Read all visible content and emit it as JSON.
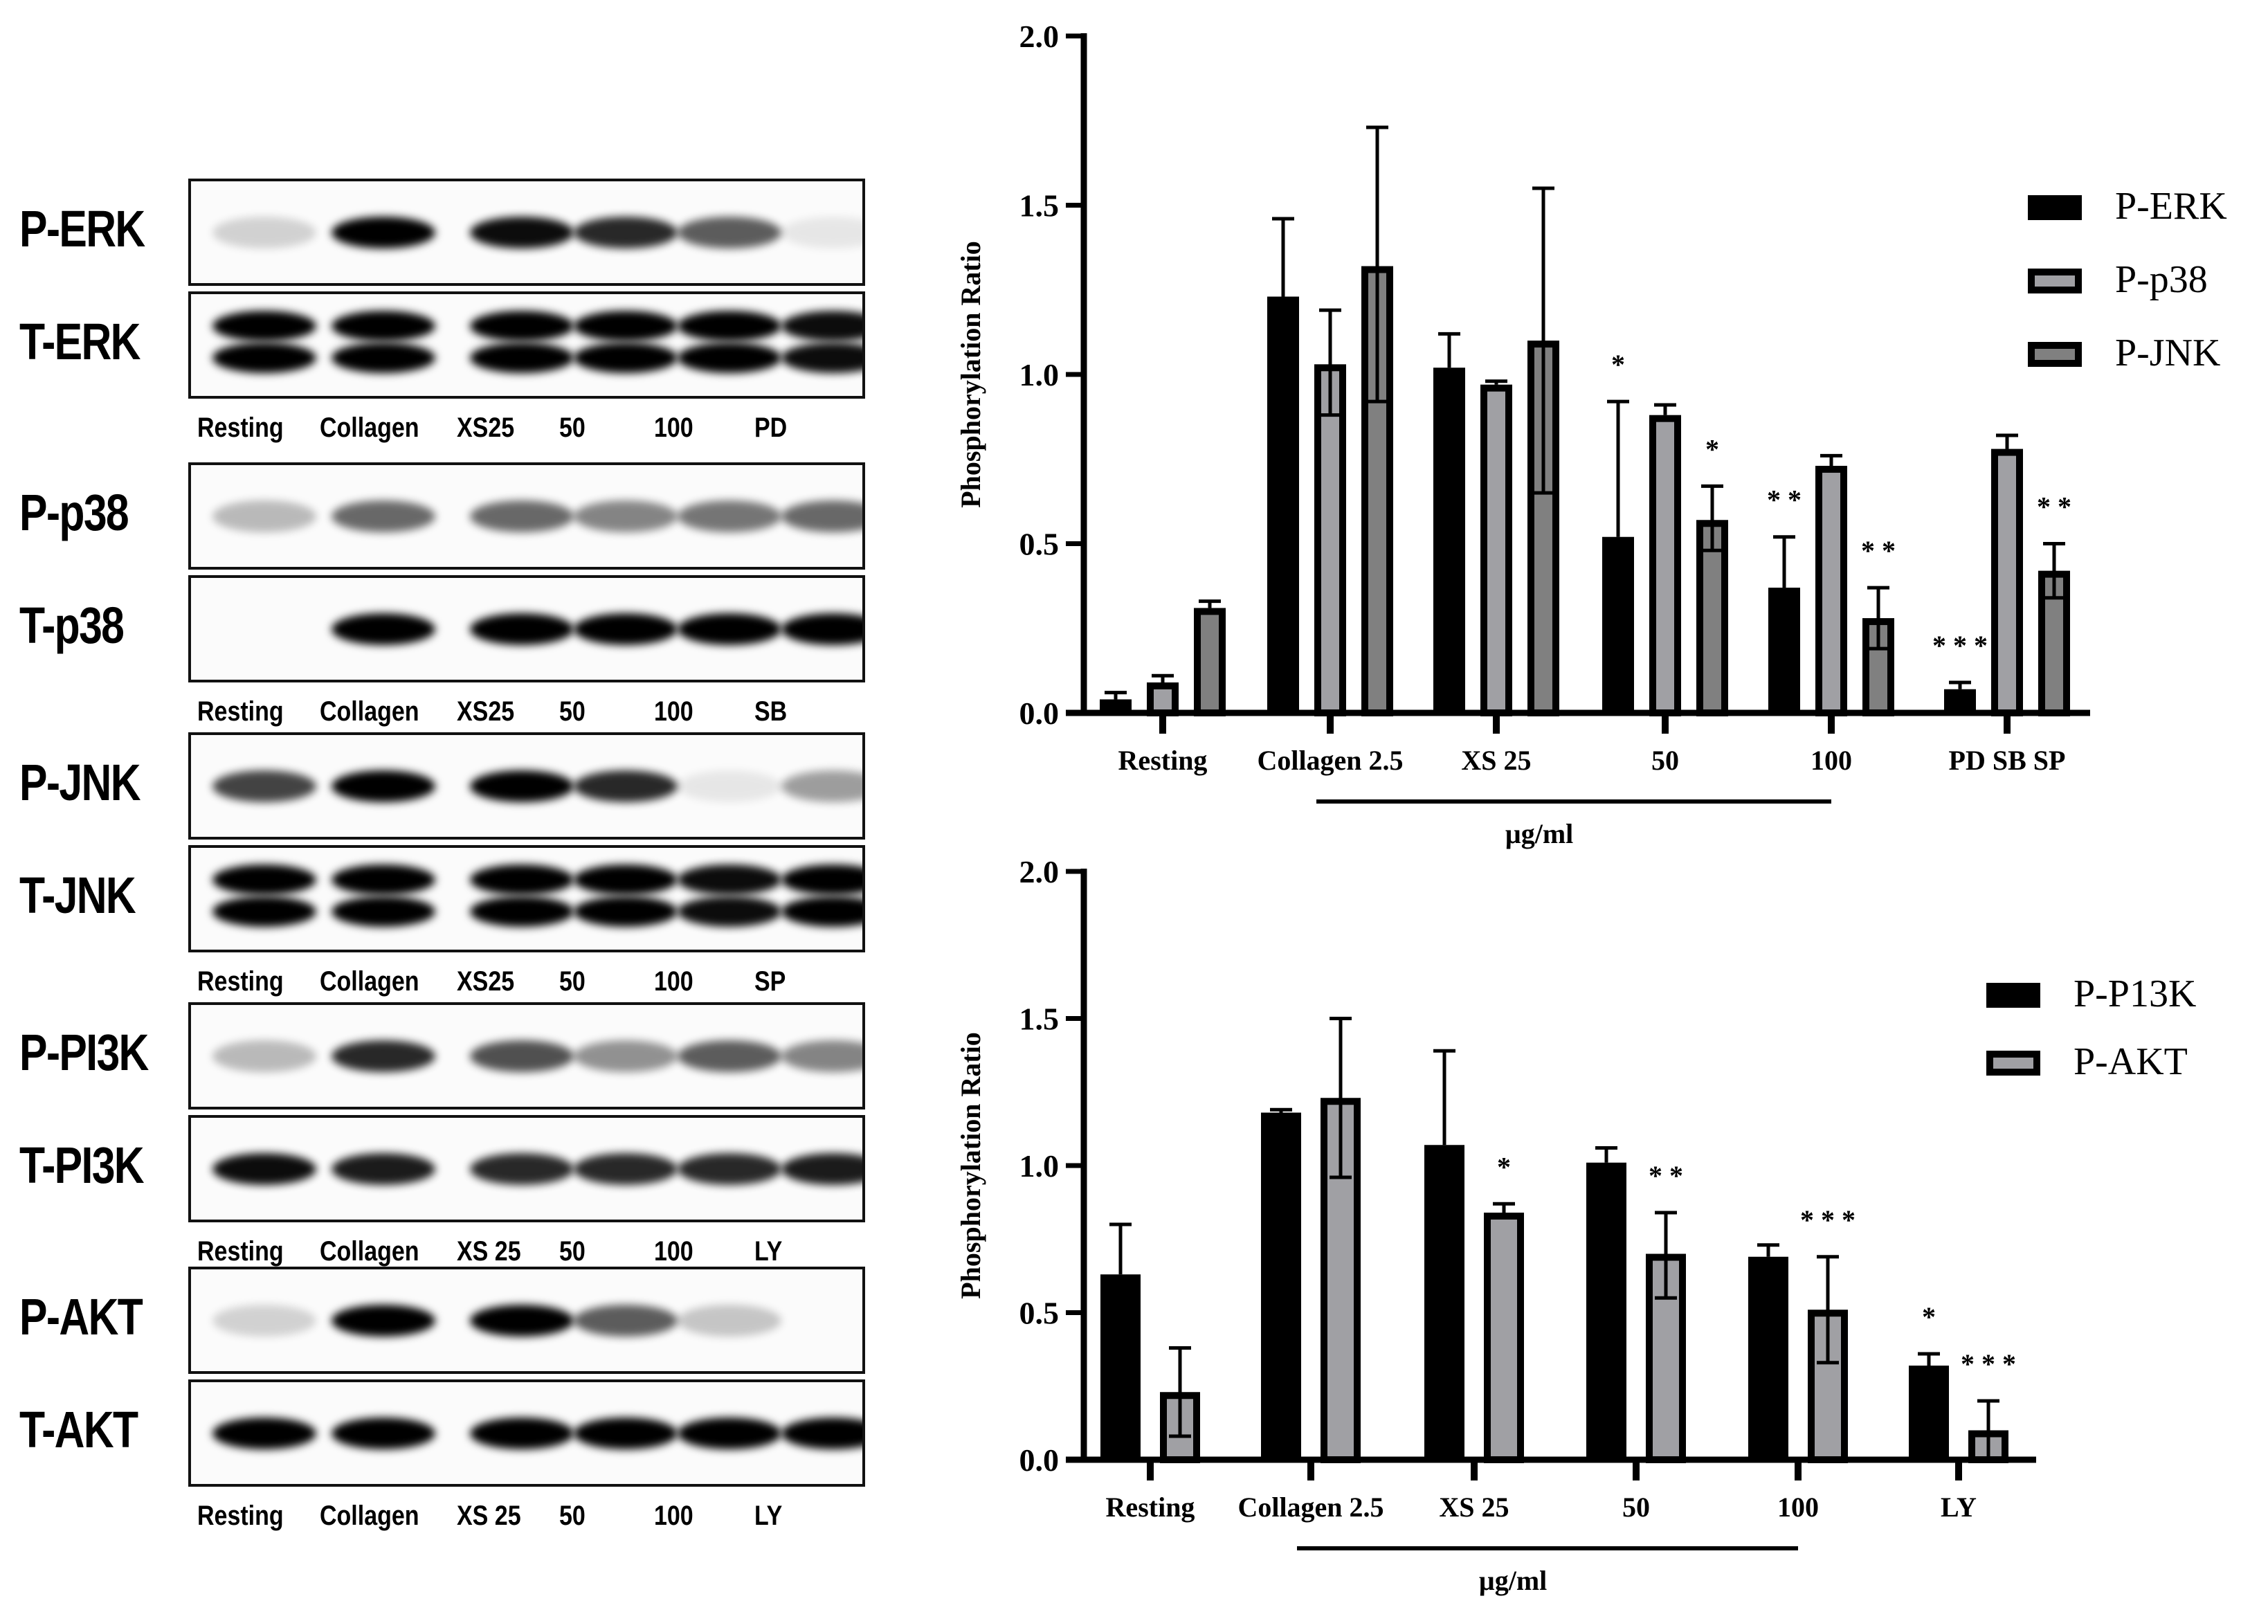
{
  "blots": {
    "groups": [
      {
        "phospho_label": "P-ERK",
        "total_label": "T-ERK",
        "lanes": [
          "Resting",
          "Collagen",
          "XS25",
          "50",
          "100",
          "PD"
        ],
        "phospho_intensity": [
          0.15,
          1.0,
          0.9,
          0.8,
          0.6,
          0.08
        ],
        "total_intensity": [
          1.0,
          1.0,
          0.95,
          0.95,
          0.95,
          0.9
        ],
        "total_double_band": true
      },
      {
        "phospho_label": "P-p38",
        "total_label": "T-p38",
        "lanes": [
          "Resting",
          "Collagen",
          "XS25",
          "50",
          "100",
          "SB"
        ],
        "phospho_intensity": [
          0.25,
          0.55,
          0.55,
          0.45,
          0.5,
          0.55
        ],
        "total_intensity": [
          0,
          1.0,
          1.0,
          1.0,
          1.0,
          0.95
        ],
        "total_double_band": false
      },
      {
        "phospho_label": "P-JNK",
        "total_label": "T-JNK",
        "lanes": [
          "Resting",
          "Collagen",
          "XS25",
          "50",
          "100",
          "SP"
        ],
        "phospho_intensity": [
          0.7,
          1.0,
          1.0,
          0.8,
          0.08,
          0.35
        ],
        "total_intensity": [
          1.0,
          1.0,
          1.0,
          1.0,
          0.9,
          0.95
        ],
        "total_double_band": true
      },
      {
        "phospho_label": "P-PI3K",
        "total_label": "T-PI3K",
        "lanes": [
          "Resting",
          "Collagen",
          "XS 25",
          "50",
          "100",
          "LY"
        ],
        "phospho_intensity": [
          0.25,
          0.8,
          0.65,
          0.4,
          0.6,
          0.45
        ],
        "total_intensity": [
          0.9,
          0.85,
          0.8,
          0.8,
          0.8,
          0.85
        ],
        "total_double_band": false
      },
      {
        "phospho_label": "P-AKT",
        "total_label": "T-AKT",
        "lanes": [
          "Resting",
          "Collagen",
          "XS 25",
          "50",
          "100",
          "LY"
        ],
        "phospho_intensity": [
          0.15,
          1.0,
          1.0,
          0.6,
          0.2,
          0.0
        ],
        "total_intensity": [
          1.0,
          0.95,
          1.0,
          1.0,
          1.0,
          1.0
        ],
        "total_double_band": false
      }
    ]
  },
  "chart_data": [
    {
      "type": "bar",
      "title": "",
      "xlabel": "µg/ml",
      "ylabel": "Phosphorylation Ratio",
      "ylim": [
        0,
        2.0
      ],
      "yticks": [
        "0.0",
        "0.5",
        "1.0",
        "1.5",
        "2.0"
      ],
      "grid": false,
      "legend_position": "right",
      "categories": [
        "Resting",
        "Collagen 2.5",
        "XS 25",
        "50",
        "100",
        "PD SB SP"
      ],
      "dose_bar_span": [
        "Collagen 2.5",
        "100"
      ],
      "series": [
        {
          "name": "P-ERK",
          "color": "#000000",
          "values": [
            0.04,
            1.23,
            1.02,
            0.52,
            0.37,
            0.07
          ],
          "err_low": [
            0.04,
            1.23,
            1.02,
            0.52,
            0.37,
            0.07
          ],
          "err_high": [
            0.06,
            1.46,
            1.12,
            0.92,
            0.52,
            0.09
          ],
          "significance": [
            "",
            "",
            "",
            "*",
            "**",
            "***"
          ]
        },
        {
          "name": "P-p38",
          "color": "#a0a0a4",
          "values": [
            0.09,
            1.03,
            0.97,
            0.88,
            0.73,
            0.78
          ],
          "err_low": [
            0.09,
            0.88,
            0.97,
            0.88,
            0.73,
            0.78
          ],
          "err_high": [
            0.11,
            1.19,
            0.98,
            0.91,
            0.76,
            0.82
          ],
          "significance": [
            "",
            "",
            "",
            "",
            "",
            ""
          ]
        },
        {
          "name": "P-JNK",
          "color": "#808080",
          "values": [
            0.31,
            1.32,
            1.1,
            0.57,
            0.28,
            0.42
          ],
          "err_low": [
            0.31,
            0.92,
            0.65,
            0.48,
            0.19,
            0.34
          ],
          "err_high": [
            0.33,
            1.73,
            1.55,
            0.67,
            0.37,
            0.5
          ],
          "significance": [
            "",
            "",
            "",
            "*",
            "**",
            "**"
          ]
        }
      ]
    },
    {
      "type": "bar",
      "title": "",
      "xlabel": "µg/ml",
      "ylabel": "Phosphorylation Ratio",
      "ylim": [
        0,
        2.0
      ],
      "yticks": [
        "0.0",
        "0.5",
        "1.0",
        "1.5",
        "2.0"
      ],
      "grid": false,
      "legend_position": "right",
      "categories": [
        "Resting",
        "Collagen 2.5",
        "XS 25",
        "50",
        "100",
        "LY"
      ],
      "dose_bar_span": [
        "Collagen 2.5",
        "100"
      ],
      "series": [
        {
          "name": "P-P13K",
          "color": "#000000",
          "values": [
            0.63,
            1.18,
            1.07,
            1.01,
            0.69,
            0.32
          ],
          "err_low": [
            0.63,
            1.18,
            1.07,
            1.01,
            0.69,
            0.32
          ],
          "err_high": [
            0.8,
            1.19,
            1.39,
            1.06,
            0.73,
            0.36
          ],
          "significance": [
            "",
            "",
            "",
            "",
            "",
            "*"
          ]
        },
        {
          "name": "P-AKT",
          "color": "#a0a0a4",
          "values": [
            0.23,
            1.23,
            0.84,
            0.7,
            0.51,
            0.1
          ],
          "err_low": [
            0.08,
            0.96,
            0.84,
            0.55,
            0.33,
            0.0
          ],
          "err_high": [
            0.38,
            1.5,
            0.87,
            0.84,
            0.69,
            0.2
          ],
          "significance": [
            "",
            "",
            "*",
            "**",
            "***",
            "***"
          ]
        }
      ]
    }
  ]
}
